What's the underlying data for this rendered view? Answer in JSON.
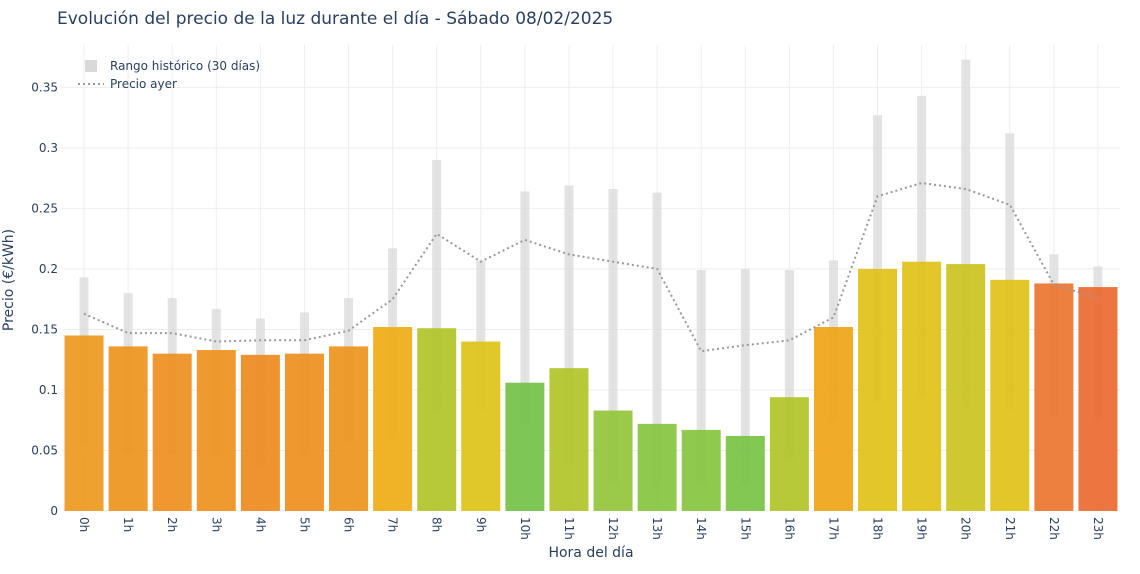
{
  "chart_data": {
    "type": "bar",
    "title": "Evolución del precio de la luz durante el día - Sábado 08/02/2025",
    "xlabel": "Hora del día",
    "ylabel": "Precio (€/kWh)",
    "ylim": [
      0,
      0.385
    ],
    "yticks": [
      0,
      0.05,
      0.1,
      0.15,
      0.2,
      0.25,
      0.3,
      0.35
    ],
    "ytick_labels": [
      "0",
      "0.05",
      "0.1",
      "0.15",
      "0.2",
      "0.25",
      "0.3",
      "0.35"
    ],
    "grid": true,
    "legend_position": "top-left",
    "categories": [
      "0h",
      "1h",
      "2h",
      "3h",
      "4h",
      "5h",
      "6h",
      "7h",
      "8h",
      "9h",
      "10h",
      "11h",
      "12h",
      "13h",
      "14h",
      "15h",
      "16h",
      "17h",
      "18h",
      "19h",
      "20h",
      "21h",
      "22h",
      "23h"
    ],
    "values": [
      0.145,
      0.136,
      0.13,
      0.133,
      0.129,
      0.13,
      0.136,
      0.152,
      0.151,
      0.14,
      0.106,
      0.118,
      0.083,
      0.072,
      0.067,
      0.062,
      0.094,
      0.152,
      0.2,
      0.206,
      0.204,
      0.191,
      0.188,
      0.185
    ],
    "bar_colors": [
      "#ee9a1f",
      "#ee951f",
      "#ee901f",
      "#ee921f",
      "#ee8a20",
      "#ee901f",
      "#ee951f",
      "#efad17",
      "#b2c42a",
      "#dec41a",
      "#74c34a",
      "#b2c42a",
      "#93c53c",
      "#86c541",
      "#86c541",
      "#79c445",
      "#b2c42a",
      "#efa518",
      "#e1c21a",
      "#e1c21a",
      "#cbc421",
      "#e1c21a",
      "#ec7530",
      "#ec6b30"
    ],
    "series": [
      {
        "name": "Rango histórico (30 días)",
        "type": "range",
        "color": "#d9d9d9",
        "low": [
          0.054,
          0.047,
          0.047,
          0.046,
          0.036,
          0.046,
          0.056,
          0.06,
          0.081,
          0.083,
          0.071,
          0.038,
          0.021,
          0.02,
          0.021,
          0.022,
          0.042,
          0.074,
          0.09,
          0.093,
          0.086,
          0.083,
          0.079,
          0.075
        ],
        "high": [
          0.193,
          0.18,
          0.176,
          0.167,
          0.159,
          0.164,
          0.176,
          0.217,
          0.29,
          0.207,
          0.264,
          0.269,
          0.266,
          0.263,
          0.199,
          0.2,
          0.199,
          0.207,
          0.327,
          0.343,
          0.373,
          0.312,
          0.212,
          0.202
        ]
      },
      {
        "name": "Precio ayer",
        "type": "line",
        "color": "#999999",
        "values": [
          0.163,
          0.147,
          0.147,
          0.14,
          0.141,
          0.141,
          0.149,
          0.175,
          0.229,
          0.206,
          0.224,
          0.212,
          0.206,
          0.2,
          0.132,
          0.137,
          0.141,
          0.16,
          0.26,
          0.271,
          0.266,
          0.253,
          0.187,
          0.176
        ]
      }
    ]
  }
}
